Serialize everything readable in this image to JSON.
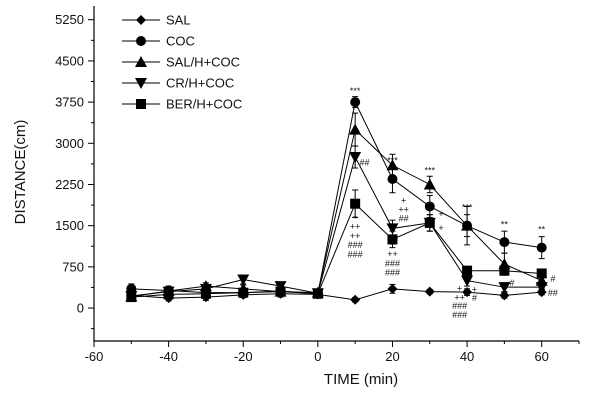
{
  "chart_data": {
    "type": "line",
    "title": "",
    "xlabel": "TIME (min)",
    "ylabel": "DISTANCE(cm)",
    "xlim": [
      -60,
      70
    ],
    "ylim": [
      -600,
      5500
    ],
    "xticks": [
      -60,
      -40,
      -20,
      0,
      20,
      40,
      60
    ],
    "yticks": [
      0,
      750,
      1500,
      2250,
      3000,
      3750,
      4500,
      5250
    ],
    "grid": false,
    "legend_position": "top-left",
    "series": [
      {
        "name": "SAL",
        "marker": "diamond",
        "x": [
          -50,
          -40,
          -30,
          -20,
          -10,
          0,
          10,
          20,
          30,
          40,
          50,
          60
        ],
        "y": [
          230,
          180,
          200,
          240,
          260,
          250,
          150,
          350,
          300,
          290,
          230,
          290
        ],
        "err": [
          60,
          50,
          60,
          50,
          60,
          50,
          40,
          80,
          40,
          60,
          50,
          50
        ]
      },
      {
        "name": "COC",
        "marker": "circle",
        "x": [
          -50,
          -40,
          -30,
          -20,
          -10,
          0,
          10,
          20,
          30,
          40,
          50,
          60
        ],
        "y": [
          350,
          320,
          280,
          280,
          310,
          260,
          3750,
          2350,
          1850,
          1500,
          1200,
          1100
        ],
        "err": [
          90,
          80,
          70,
          70,
          80,
          60,
          100,
          250,
          200,
          200,
          200,
          200
        ]
      },
      {
        "name": "SAL/H+COC",
        "marker": "triangle-up",
        "x": [
          -50,
          -40,
          -30,
          -20,
          -10,
          0,
          10,
          20,
          30,
          40,
          50,
          60
        ],
        "y": [
          210,
          310,
          400,
          350,
          300,
          280,
          3250,
          2600,
          2250,
          1500,
          800,
          500
        ],
        "err": [
          60,
          70,
          60,
          70,
          60,
          60,
          300,
          200,
          150,
          350,
          200,
          150
        ]
      },
      {
        "name": "CR/H+COC",
        "marker": "triangle-down",
        "x": [
          -50,
          -40,
          -30,
          -20,
          -10,
          0,
          10,
          20,
          30,
          40,
          50,
          60
        ],
        "y": [
          220,
          300,
          350,
          520,
          400,
          270,
          2750,
          1450,
          1550,
          500,
          380,
          380
        ],
        "err": [
          60,
          70,
          70,
          80,
          70,
          60,
          200,
          150,
          150,
          100,
          80,
          80
        ]
      },
      {
        "name": "BER/H+COC",
        "marker": "square",
        "x": [
          -50,
          -40,
          -30,
          -20,
          -10,
          0,
          10,
          20,
          30,
          40,
          50,
          60
        ],
        "y": [
          200,
          250,
          260,
          280,
          300,
          260,
          1900,
          1250,
          1550,
          680,
          680,
          630
        ],
        "err": [
          60,
          60,
          60,
          60,
          60,
          60,
          250,
          150,
          150,
          80,
          80,
          80
        ]
      }
    ],
    "annotations": [
      {
        "x": 10,
        "y": 3900,
        "text": "***"
      },
      {
        "x": 20,
        "y": 2630,
        "text": "***"
      },
      {
        "x": 30,
        "y": 2450,
        "text": "***"
      },
      {
        "x": 40,
        "y": 1780,
        "text": "***"
      },
      {
        "x": 50,
        "y": 1470,
        "text": "**"
      },
      {
        "x": 60,
        "y": 1380,
        "text": "**"
      },
      {
        "x": 12.5,
        "y": 2600,
        "text": "##"
      },
      {
        "x": 10,
        "y": 1600,
        "text": "+"
      },
      {
        "x": 10,
        "y": 1430,
        "text": "++"
      },
      {
        "x": 10,
        "y": 1260,
        "text": "++"
      },
      {
        "x": 10,
        "y": 1090,
        "text": "###"
      },
      {
        "x": 10,
        "y": 920,
        "text": "###"
      },
      {
        "x": 23,
        "y": 1900,
        "text": "+"
      },
      {
        "x": 23,
        "y": 1740,
        "text": "++"
      },
      {
        "x": 23,
        "y": 1580,
        "text": "##"
      },
      {
        "x": 20,
        "y": 1100,
        "text": "+"
      },
      {
        "x": 20,
        "y": 930,
        "text": "++"
      },
      {
        "x": 20,
        "y": 760,
        "text": "###"
      },
      {
        "x": 20,
        "y": 590,
        "text": "###"
      },
      {
        "x": 33,
        "y": 1660,
        "text": "+"
      },
      {
        "x": 33,
        "y": 1400,
        "text": "+"
      },
      {
        "x": 38,
        "y": 300,
        "text": "+"
      },
      {
        "x": 38,
        "y": 140,
        "text": "++"
      },
      {
        "x": 38,
        "y": -20,
        "text": "###"
      },
      {
        "x": 38,
        "y": -180,
        "text": "###"
      },
      {
        "x": 42,
        "y": 280,
        "text": "+"
      },
      {
        "x": 42,
        "y": 130,
        "text": "#"
      },
      {
        "x": 52,
        "y": 400,
        "text": "#"
      },
      {
        "x": 63,
        "y": 470,
        "text": "#"
      },
      {
        "x": 63,
        "y": 220,
        "text": "##"
      }
    ]
  }
}
